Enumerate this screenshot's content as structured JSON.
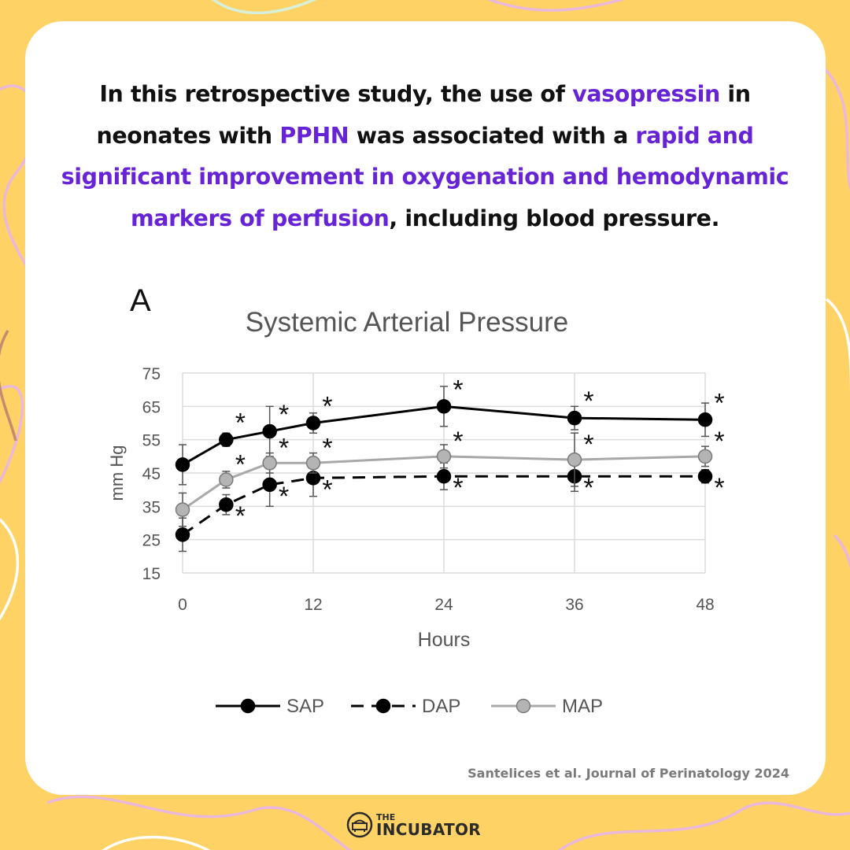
{
  "headline": {
    "t1": "In this retrospective study, the use of ",
    "h1": "vasopressin",
    "t2": " in neonates with ",
    "h2": "PPHN",
    "t3": " was associated with a ",
    "h3": "rapid and significant improvement in oxygenation and hemodynamic markers of perfusion",
    "t4": ", including blood pressure."
  },
  "colors": {
    "accent": "#6624d6",
    "background": "#fed264",
    "card": "#ffffff",
    "sap": "#000000",
    "dap": "#000000",
    "map": "#a8a8a8"
  },
  "chart_data": {
    "type": "line",
    "panel_label": "A",
    "title": "Systemic  Arterial Pressure",
    "xlabel": "Hours",
    "ylabel": "mm Hg",
    "xlim": [
      0,
      48
    ],
    "ylim": [
      15,
      75
    ],
    "xticks": [
      0,
      12,
      24,
      36,
      48
    ],
    "yticks": [
      15,
      25,
      35,
      45,
      55,
      65,
      75
    ],
    "grid": true,
    "legend_position": "bottom-center",
    "x": [
      0,
      4,
      8,
      12,
      24,
      36,
      48
    ],
    "significance_marker": "*",
    "series": [
      {
        "name": "SAP",
        "style": "solid",
        "marker": "black-circle",
        "values": [
          47.5,
          55,
          57.5,
          60,
          65,
          61.5,
          61
        ],
        "err": [
          6,
          2,
          7.5,
          3,
          6,
          3.5,
          5
        ],
        "significant": [
          false,
          true,
          true,
          true,
          true,
          true,
          true
        ]
      },
      {
        "name": "DAP",
        "style": "dashed",
        "marker": "black-circle",
        "values": [
          26.5,
          35.5,
          41.5,
          43.5,
          44,
          44,
          44
        ],
        "err": [
          5,
          3,
          6.5,
          5.5,
          4,
          4.5,
          2
        ],
        "significant": [
          false,
          true,
          true,
          true,
          true,
          true,
          true
        ]
      },
      {
        "name": "MAP",
        "style": "solid",
        "marker": "gray-circle",
        "values": [
          34,
          43,
          48,
          48,
          50,
          49,
          50
        ],
        "err": [
          5,
          2.5,
          3,
          3,
          3.5,
          8,
          3
        ],
        "significant": [
          false,
          true,
          true,
          true,
          true,
          true,
          true
        ]
      }
    ]
  },
  "citation": "Santelices et al. Journal of Perinatology 2024",
  "logo": {
    "the": "THE",
    "name": "INCUBATOR"
  }
}
